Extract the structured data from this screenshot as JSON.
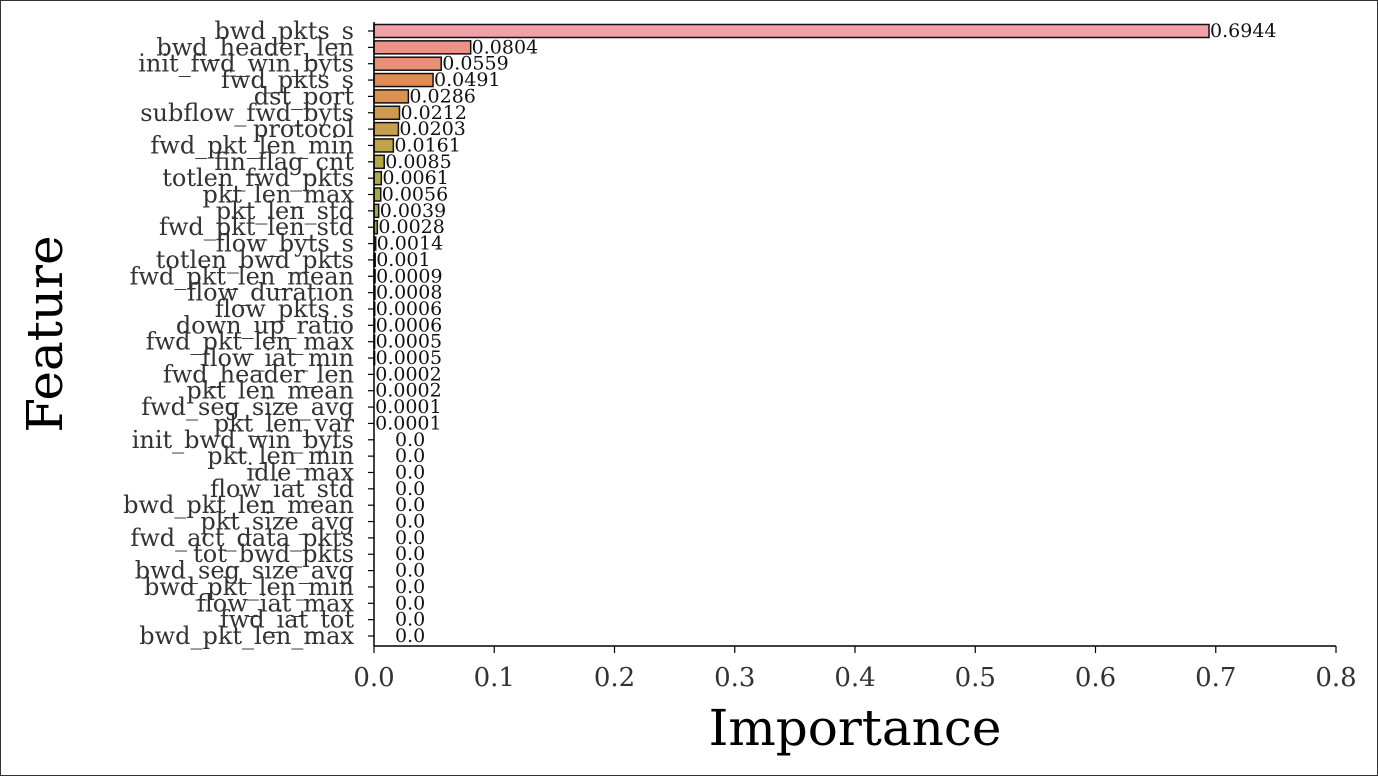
{
  "chart_data": {
    "type": "bar",
    "orientation": "horizontal",
    "xlabel": "Importance",
    "ylabel": "Feature",
    "xlim": [
      0.0,
      0.8
    ],
    "xticks": [
      "0.0",
      "0.1",
      "0.2",
      "0.3",
      "0.4",
      "0.5",
      "0.6",
      "0.7",
      "0.8"
    ],
    "grid": false,
    "categories": [
      "bwd_pkts_s",
      "bwd_header_len",
      "init_fwd_win_byts",
      "fwd_pkts_s",
      "dst_port",
      "subflow_fwd_byts",
      "protocol",
      "fwd_pkt_len_min",
      "fin_flag_cnt",
      "totlen_fwd_pkts",
      "pkt_len_max",
      "pkt_len_std",
      "fwd_pkt_len_std",
      "flow_byts_s",
      "totlen_bwd_pkts",
      "fwd_pkt_len_mean",
      "flow_duration",
      "flow_pkts_s",
      "down_up_ratio",
      "fwd_pkt_len_max",
      "flow_iat_min",
      "fwd_header_len",
      "pkt_len_mean",
      "fwd_seg_size_avg",
      "pkt_len_var",
      "init_bwd_win_byts",
      "pkt_len_min",
      "idle_max",
      "flow_iat_std",
      "bwd_pkt_len_mean",
      "pkt_size_avg",
      "fwd_act_data_pkts",
      "tot_bwd_pkts",
      "bwd_seg_size_avg",
      "bwd_pkt_len_min",
      "flow_iat_max",
      "fwd_iat_tot",
      "bwd_pkt_len_max"
    ],
    "values": [
      0.6944,
      0.0804,
      0.0559,
      0.0491,
      0.0286,
      0.0212,
      0.0203,
      0.0161,
      0.0085,
      0.0061,
      0.0056,
      0.0039,
      0.0028,
      0.0014,
      0.001,
      0.0009,
      0.0008,
      0.0006,
      0.0006,
      0.0005,
      0.0005,
      0.0002,
      0.0002,
      0.0001,
      0.0001,
      0.0,
      0.0,
      0.0,
      0.0,
      0.0,
      0.0,
      0.0,
      0.0,
      0.0,
      0.0,
      0.0,
      0.0,
      0.0
    ],
    "value_labels": [
      "0.6944",
      "0.0804",
      "0.0559",
      "0.0491",
      "0.0286",
      "0.0212",
      "0.0203",
      "0.0161",
      "0.0085",
      "0.0061",
      "0.0056",
      "0.0039",
      "0.0028",
      "0.0014",
      "0.001",
      "0.0009",
      "0.0008",
      "0.0006",
      "0.0006",
      "0.0005",
      "0.0005",
      "0.0002",
      "0.0002",
      "0.0001",
      "0.0001",
      "0.0",
      "0.0",
      "0.0",
      "0.0",
      "0.0",
      "0.0",
      "0.0",
      "0.0",
      "0.0",
      "0.0",
      "0.0",
      "0.0",
      "0.0"
    ],
    "colors": [
      "#f2a0a6",
      "#ec9288",
      "#e88f76",
      "#e08a55",
      "#d99250",
      "#cf9a4f",
      "#c69e4d",
      "#bfa34b",
      "#b6a645",
      "#aea942",
      "#a8aa3e",
      "#a2ab3c",
      "#9cac3a",
      "#97ad39",
      "#92ae38",
      "#8daf37",
      "#8ab036",
      "#87b135",
      "#84b235",
      "#81b335",
      "#7eb435",
      "#7bb535",
      "#78b636",
      "#75b737",
      "#72b838",
      "#70b939",
      "#6eba3a",
      "#6cbb3b",
      "#6abc3c",
      "#68bd3d",
      "#66be3e",
      "#64bf3f",
      "#62c040",
      "#60c141",
      "#5ec242",
      "#5cc343",
      "#5ac444",
      "#58c545"
    ]
  }
}
